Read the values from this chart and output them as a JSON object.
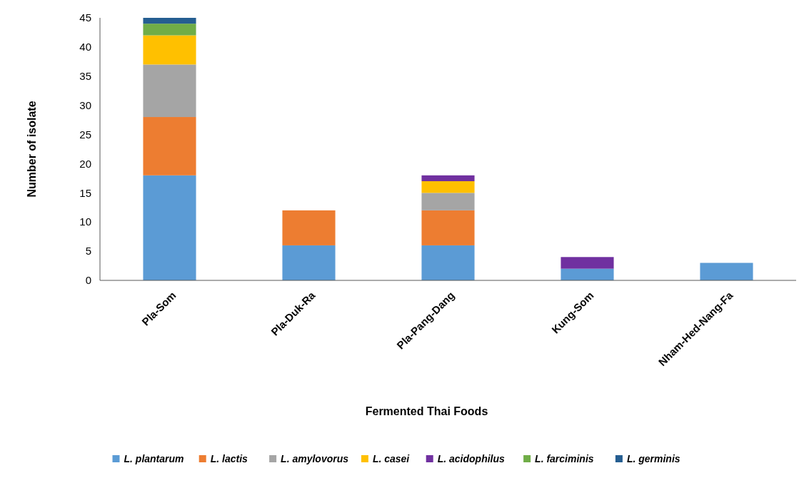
{
  "chart_data": {
    "type": "bar",
    "stacked": true,
    "xlabel": "Fermented Thai Foods",
    "ylabel": "Number of isolate",
    "categories": [
      "Pla-Som",
      "Pla-Duk-Ra",
      "Pla-Pang-Dang",
      "Kung-Som",
      "Nham-Hed-Nang-Fa"
    ],
    "series": [
      {
        "name": "L. plantarum",
        "color": "#5b9bd5",
        "values": [
          18,
          6,
          6,
          2,
          3
        ]
      },
      {
        "name": "L. lactis",
        "color": "#ed7d31",
        "values": [
          10,
          6,
          6,
          0,
          0
        ]
      },
      {
        "name": "L. amylovorus",
        "color": "#a5a5a5",
        "values": [
          9,
          0,
          3,
          0,
          0
        ]
      },
      {
        "name": "L. casei",
        "color": "#ffc000",
        "values": [
          5,
          0,
          2,
          0,
          0
        ]
      },
      {
        "name": "L. acidophilus",
        "color": "#7030a0",
        "values": [
          0,
          0,
          1,
          2,
          0
        ]
      },
      {
        "name": "L. farciminis",
        "color": "#70ad47",
        "values": [
          2,
          0,
          0,
          0,
          0
        ]
      },
      {
        "name": "L. germinis",
        "color": "#255e91",
        "values": [
          1,
          0,
          0,
          0,
          0
        ]
      }
    ],
    "ylim": [
      0,
      45
    ],
    "yticks": [
      0,
      5,
      10,
      15,
      20,
      25,
      30,
      35,
      40,
      45
    ],
    "grid": false,
    "legend": "bottom"
  }
}
